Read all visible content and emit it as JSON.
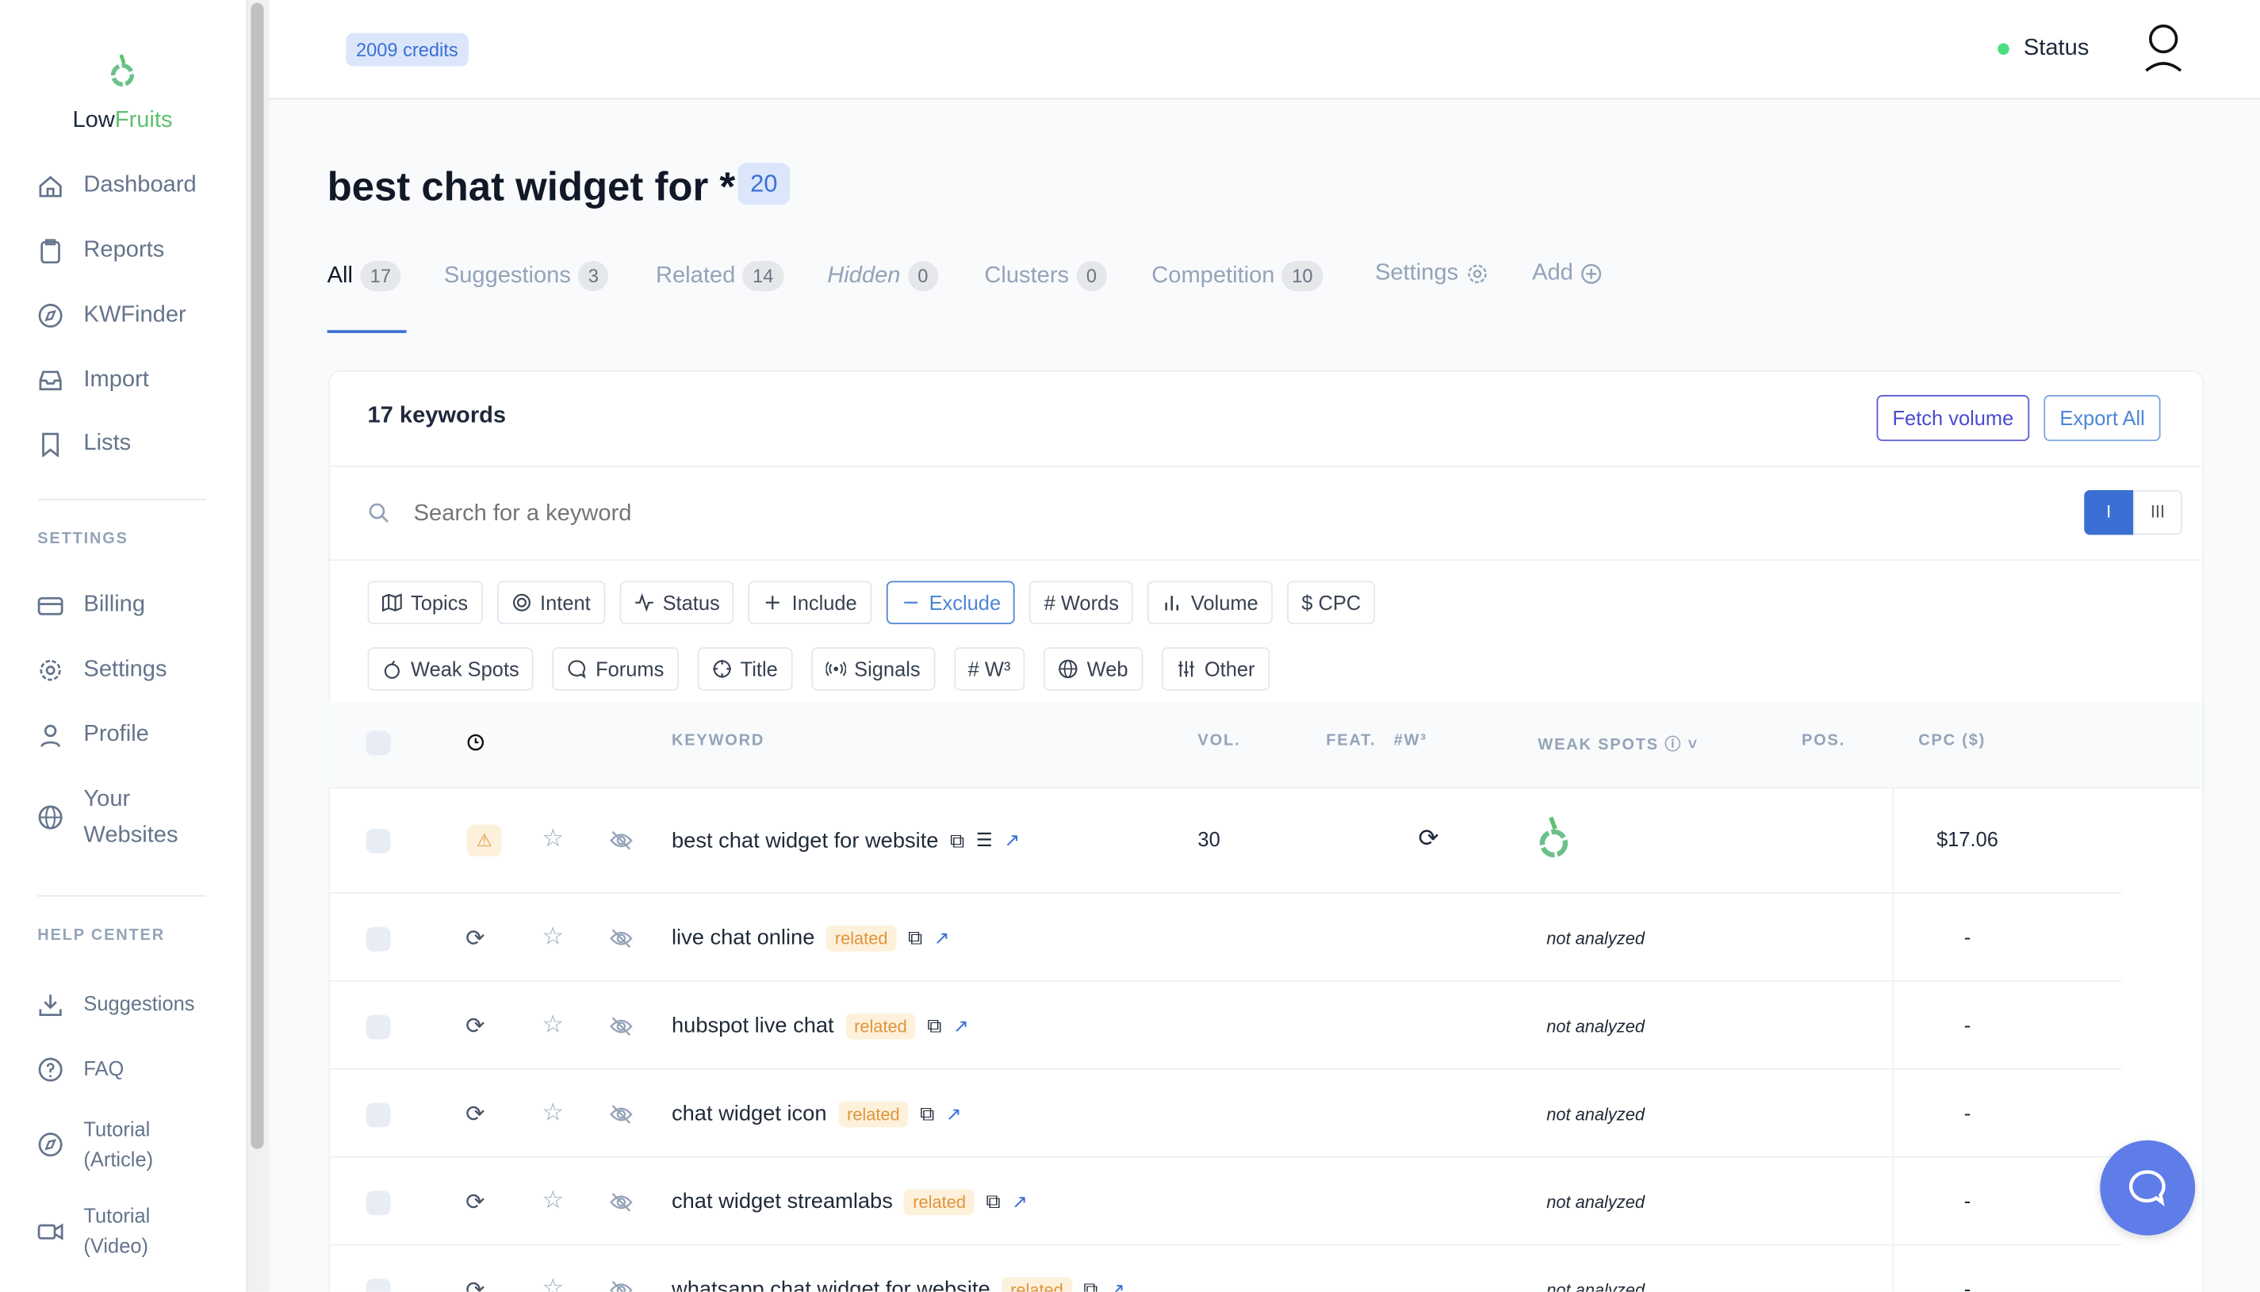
{
  "brand": {
    "low": "Low",
    "fruits": "Fruits",
    "accent": "#5fc070"
  },
  "sidebar": {
    "main": [
      {
        "label": "Dashboard",
        "icon": "home-icon"
      },
      {
        "label": "Reports",
        "icon": "clipboard-icon"
      },
      {
        "label": "KWFinder",
        "icon": "compass-icon"
      },
      {
        "label": "Import",
        "icon": "inbox-icon"
      },
      {
        "label": "Lists",
        "icon": "bookmark-icon"
      }
    ],
    "settings_title": "SETTINGS",
    "settings": [
      {
        "label": "Billing",
        "icon": "credit-card-icon"
      },
      {
        "label": "Settings",
        "icon": "gear-icon"
      },
      {
        "label": "Profile",
        "icon": "user-icon"
      },
      {
        "label": "Your Websites",
        "icon": "globe-icon"
      }
    ],
    "help_title": "HELP CENTER",
    "help": [
      {
        "label": "Suggestions",
        "icon": "download-icon"
      },
      {
        "label": "FAQ",
        "icon": "question-icon"
      },
      {
        "label": "Tutorial (Article)",
        "icon": "compass-icon"
      },
      {
        "label": "Tutorial (Video)",
        "icon": "video-icon"
      }
    ]
  },
  "header": {
    "credits": "2009 credits",
    "status": "Status",
    "status_color": "#4ade80"
  },
  "page": {
    "title": "best chat widget for *",
    "title_count": "20"
  },
  "tabs": [
    {
      "label": "All",
      "count": "17",
      "active": true
    },
    {
      "label": "Suggestions",
      "count": "3"
    },
    {
      "label": "Related",
      "count": "14"
    },
    {
      "label": "Hidden",
      "count": "0"
    },
    {
      "label": "Clusters",
      "count": "0"
    },
    {
      "label": "Competition",
      "count": "10"
    },
    {
      "label": "Settings",
      "icon": "gear-icon"
    },
    {
      "label": "Add",
      "icon": "plus-circle-icon"
    }
  ],
  "card": {
    "title": "17 keywords",
    "fetch_volume": "Fetch volume",
    "export_all": "Export All",
    "search_placeholder": "Search for a keyword",
    "view_single": "I",
    "view_multi": "III"
  },
  "filters_row1": [
    {
      "label": "Topics",
      "icon": "map-icon"
    },
    {
      "label": "Intent",
      "icon": "target-icon"
    },
    {
      "label": "Status",
      "icon": "activity-icon"
    },
    {
      "label": "Include",
      "icon": "plus-icon"
    },
    {
      "label": "Exclude",
      "icon": "minus-icon",
      "active": true
    },
    {
      "label": "# Words"
    },
    {
      "label": "Volume",
      "icon": "bar-chart-icon"
    },
    {
      "label": "$ CPC"
    }
  ],
  "filters_row2": [
    {
      "label": "Weak Spots",
      "icon": "fruit-icon"
    },
    {
      "label": "Forums",
      "icon": "chat-icon"
    },
    {
      "label": "Title",
      "icon": "crosshair-icon"
    },
    {
      "label": "Signals",
      "icon": "signal-icon"
    },
    {
      "label": "# W³"
    },
    {
      "label": "Web",
      "icon": "globe-icon"
    },
    {
      "label": "Other",
      "icon": "sliders-icon"
    }
  ],
  "columns": {
    "keyword": "KEYWORD",
    "vol": "VOL.",
    "feat": "FEAT.",
    "w3": "#W³",
    "weak_spots": "WEAK SPOTS",
    "pos": "POS.",
    "cpc": "CPC ($)"
  },
  "rows": [
    {
      "keyword": "best chat widget for website",
      "status": "warning",
      "vol": "30",
      "tag": "",
      "weak": "fruit",
      "cpc": "$17.06"
    },
    {
      "keyword": "live chat online",
      "status": "refresh",
      "vol": "",
      "tag": "related",
      "weak": "not analyzed",
      "cpc": "-"
    },
    {
      "keyword": "hubspot live chat",
      "status": "refresh",
      "vol": "",
      "tag": "related",
      "weak": "not analyzed",
      "cpc": "-"
    },
    {
      "keyword": "chat widget icon",
      "status": "refresh",
      "vol": "",
      "tag": "related",
      "weak": "not analyzed",
      "cpc": "-"
    },
    {
      "keyword": "chat widget streamlabs",
      "status": "refresh",
      "vol": "",
      "tag": "related",
      "weak": "not analyzed",
      "cpc": "-"
    },
    {
      "keyword": "whatsapp chat widget for website",
      "status": "refresh",
      "vol": "",
      "tag": "related",
      "weak": "not analyzed",
      "cpc": "-"
    }
  ]
}
